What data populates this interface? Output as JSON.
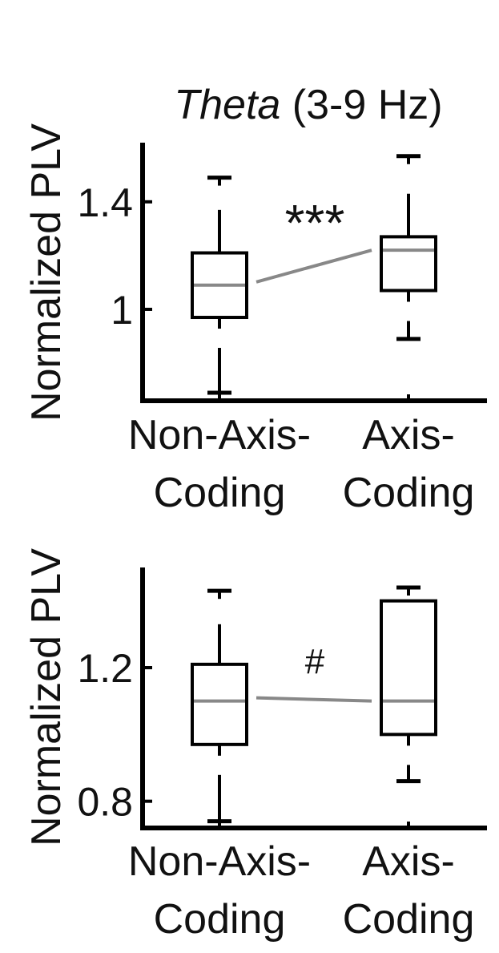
{
  "chart_data": [
    {
      "type": "box",
      "title_italic": "Theta",
      "title_rest": " (3-9 Hz)",
      "ylabel": "Normalized PLV",
      "ylim": [
        0.66,
        1.62
      ],
      "yticks": [
        1.4,
        1
      ],
      "ytick_labels": [
        "1.4",
        "1"
      ],
      "categories": [
        [
          "Non-Axis-",
          "Coding"
        ],
        [
          "Axis-",
          "Coding"
        ]
      ],
      "boxes": [
        {
          "whisker_low": 0.69,
          "q1": 0.97,
          "median": 1.09,
          "q3": 1.21,
          "whisker_high": 1.37,
          "cap_high": 1.49,
          "cap_low": 0.69
        },
        {
          "whisker_low": 0.89,
          "q1": 1.07,
          "median": 1.22,
          "q3": 1.27,
          "whisker_high": 1.43,
          "cap_high": 1.57,
          "cap_low": 0.89
        }
      ],
      "significance": "***",
      "median_line_color": "#888888"
    },
    {
      "type": "box",
      "ylabel": "Normalized PLV",
      "ylim": [
        0.72,
        1.5
      ],
      "yticks": [
        1.2,
        0.8
      ],
      "ytick_labels": [
        "1.2",
        "0.8"
      ],
      "categories": [
        [
          "Non-Axis-",
          "Coding"
        ],
        [
          "Axis-",
          "Coding"
        ]
      ],
      "boxes": [
        {
          "whisker_low": 0.74,
          "q1": 0.97,
          "median": 1.1,
          "q3": 1.21,
          "whisker_high": 1.33,
          "cap_high": 1.43,
          "cap_low": 0.74
        },
        {
          "whisker_low": 0.86,
          "q1": 1.0,
          "median": 1.1,
          "q3": 1.4,
          "whisker_high": 1.4,
          "cap_high": 1.44,
          "cap_low": 0.86
        }
      ],
      "significance": "#",
      "median_line_color": "#888888"
    }
  ]
}
